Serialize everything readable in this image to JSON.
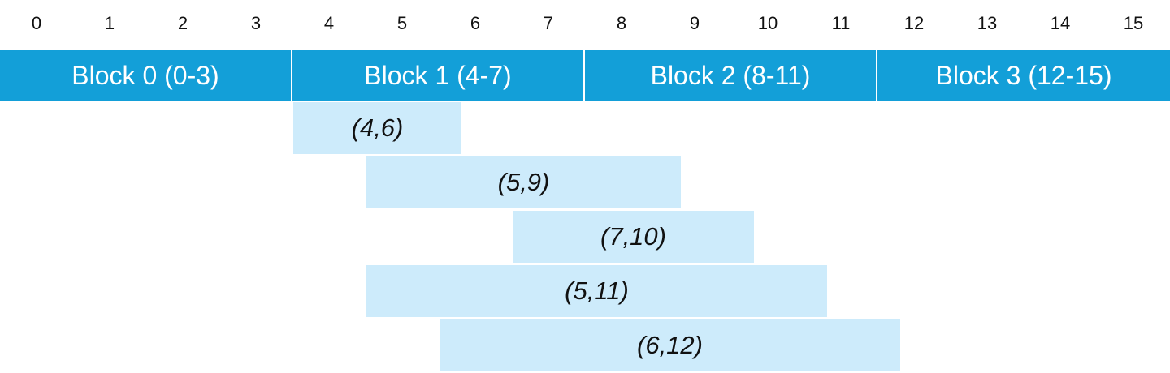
{
  "theme": {
    "block_color": "#139fd8",
    "range_color": "#cdebfb",
    "text_dark": "#111111",
    "text_light": "#ffffff"
  },
  "ticks": [
    "0",
    "1",
    "2",
    "3",
    "4",
    "5",
    "6",
    "7",
    "8",
    "9",
    "10",
    "11",
    "12",
    "13",
    "14",
    "15"
  ],
  "blocks": [
    {
      "label": "Block 0 (0-3)",
      "start": 0,
      "end": 3
    },
    {
      "label": "Block 1 (4-7)",
      "start": 4,
      "end": 7
    },
    {
      "label": "Block 2 (8-11)",
      "start": 8,
      "end": 11
    },
    {
      "label": "Block 3 (12-15)",
      "start": 12,
      "end": 15
    }
  ],
  "ranges": [
    {
      "label": "(4,6)",
      "start": 4,
      "end": 6
    },
    {
      "label": "(5,9)",
      "start": 5,
      "end": 9
    },
    {
      "label": "(7,10)",
      "start": 7,
      "end": 10
    },
    {
      "label": "(5,11)",
      "start": 5,
      "end": 11
    },
    {
      "label": "(6,12)",
      "start": 6,
      "end": 12
    }
  ]
}
